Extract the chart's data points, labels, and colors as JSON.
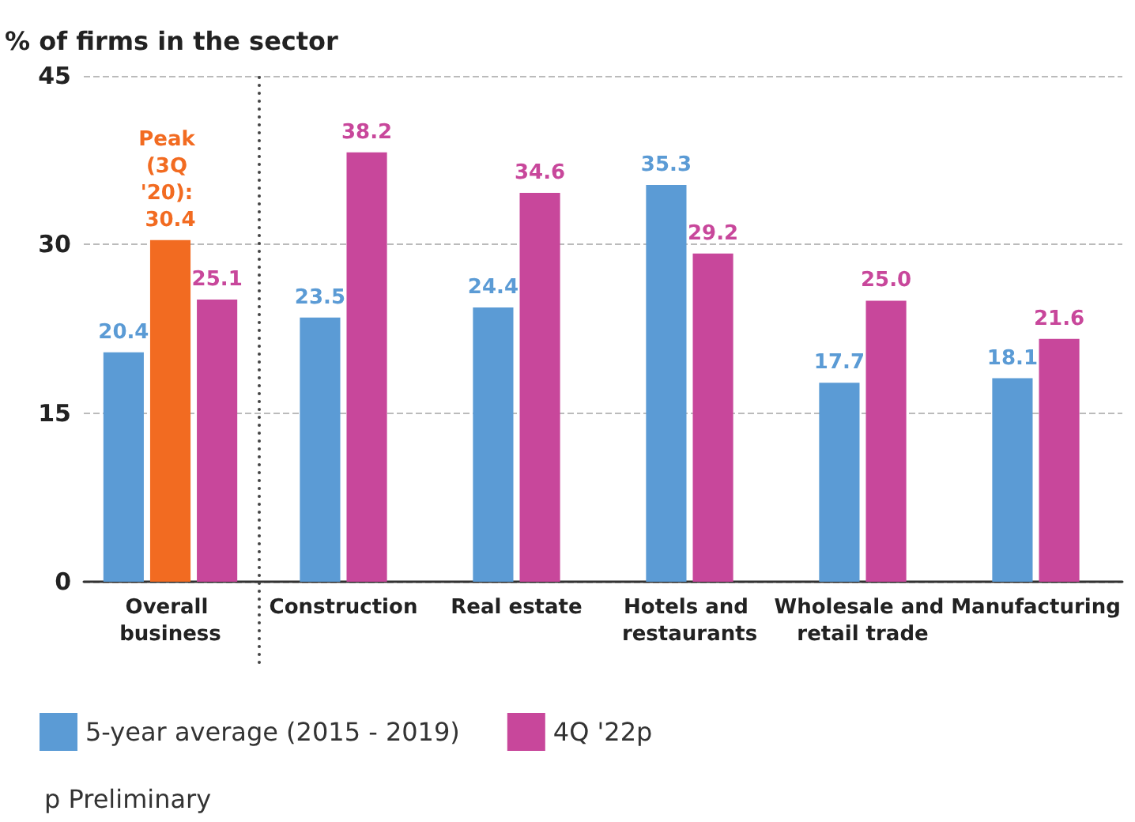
{
  "chart_data": {
    "type": "bar",
    "ylabel": "% of firms in the sector",
    "categories": [
      "Overall business",
      "Construction",
      "Real estate",
      "Hotels and restaurants",
      "Wholesale and retail trade",
      "Manufacturing"
    ],
    "series": [
      {
        "name": "5-year average (2015 - 2019)",
        "color": "#5b9bd5",
        "values": [
          20.4,
          23.5,
          24.4,
          35.3,
          17.7,
          18.1
        ],
        "value_labels": [
          "20.4",
          "23.5",
          "24.4",
          "35.3",
          "17.7",
          "18.1"
        ]
      },
      {
        "color": "#f26b21",
        "values": [
          30.4,
          null,
          null,
          null,
          null,
          null
        ],
        "value_labels": [
          "Peak (3Q '20): 30.4",
          null,
          null,
          null,
          null,
          null
        ]
      },
      {
        "name": "4Q '22p",
        "color": "#c8479b",
        "values": [
          25.1,
          38.2,
          34.6,
          29.2,
          25.0,
          21.6
        ],
        "value_labels": [
          "25.1",
          "38.2",
          "34.6",
          "29.2",
          "25.0",
          "21.6"
        ]
      }
    ],
    "ylim": [
      0,
      45
    ],
    "yticks": [
      0,
      15,
      30,
      45
    ],
    "grid": "y",
    "legend": "bottom left",
    "annotations": [
      "p  Preliminary"
    ]
  }
}
